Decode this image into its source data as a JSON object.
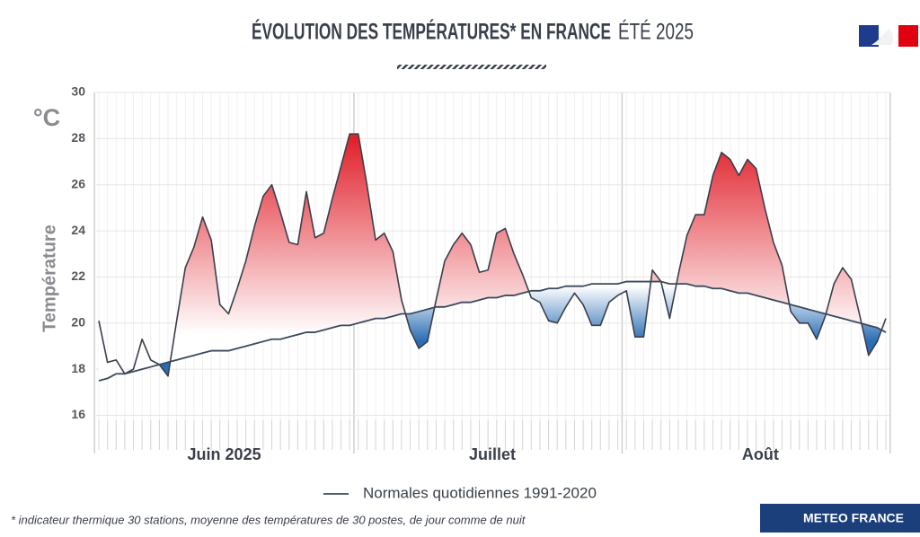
{
  "chart_data": {
    "type": "line",
    "title": "ÉVOLUTION DES TEMPÉRATURES* EN FRANCE",
    "title_suffix": "ÉTÉ 2025",
    "unit": "°C",
    "y_label": "Température",
    "footnote": "* indicateur thermique 30 stations, moyenne des températures de 30 postes, de jour comme de nuit",
    "brand": "METEO FRANCE",
    "categories": [
      null,
      null,
      null,
      null,
      null,
      null,
      null,
      null,
      null,
      null,
      null,
      null,
      null,
      null,
      "Juin 2025",
      null,
      null,
      null,
      null,
      null,
      null,
      null,
      null,
      null,
      null,
      null,
      null,
      null,
      null,
      null,
      null,
      null,
      null,
      null,
      null,
      null,
      null,
      null,
      null,
      null,
      null,
      null,
      null,
      null,
      null,
      "Juillet",
      null,
      null,
      null,
      null,
      null,
      null,
      null,
      null,
      null,
      null,
      null,
      null,
      null,
      null,
      null,
      null,
      null,
      null,
      null,
      null,
      null,
      null,
      null,
      null,
      null,
      null,
      null,
      null,
      null,
      null,
      "Août",
      null,
      null,
      null,
      null,
      null,
      null,
      null,
      null,
      null,
      null,
      null,
      null,
      null,
      null,
      null
    ],
    "series": [
      {
        "color": "#3a3f4b",
        "values": [
          20.1,
          18.3,
          18.4,
          17.8,
          18.0,
          19.3,
          18.4,
          18.2,
          17.7,
          20.1,
          22.4,
          23.3,
          24.6,
          23.6,
          20.8,
          20.4,
          21.5,
          22.7,
          24.2,
          25.5,
          26.0,
          24.8,
          23.5,
          23.4,
          25.7,
          23.7,
          23.9,
          25.4,
          26.8,
          28.2,
          28.2,
          26.0,
          23.6,
          23.9,
          23.1,
          21.0,
          19.7,
          18.9,
          19.2,
          21.0,
          22.7,
          23.4,
          23.9,
          23.4,
          22.2,
          22.3,
          23.9,
          24.1,
          23.0,
          22.1,
          21.1,
          20.9,
          20.1,
          20.0,
          20.7,
          21.3,
          20.8,
          19.9,
          19.9,
          20.9,
          21.2,
          21.4,
          19.4,
          19.4,
          22.3,
          21.8,
          20.2,
          22.1,
          23.8,
          24.7,
          24.7,
          26.4,
          27.4,
          27.1,
          26.4,
          27.1,
          26.7,
          25.0,
          23.5,
          22.5,
          20.5,
          20.0,
          20.0,
          19.3,
          20.3,
          21.7,
          22.4,
          21.9,
          20.3,
          18.6,
          19.2,
          20.2
        ]
      },
      {
        "name": "Normales quotidiennes 1991-2020",
        "color": "#3a4a5e",
        "values": [
          17.5,
          17.6,
          17.8,
          17.8,
          17.9,
          18.0,
          18.1,
          18.2,
          18.3,
          18.4,
          18.5,
          18.6,
          18.7,
          18.8,
          18.8,
          18.8,
          18.9,
          19.0,
          19.1,
          19.2,
          19.3,
          19.3,
          19.4,
          19.5,
          19.6,
          19.6,
          19.7,
          19.8,
          19.9,
          19.9,
          20.0,
          20.1,
          20.2,
          20.2,
          20.3,
          20.4,
          20.4,
          20.5,
          20.6,
          20.7,
          20.7,
          20.8,
          20.9,
          20.9,
          21.0,
          21.1,
          21.1,
          21.2,
          21.2,
          21.3,
          21.4,
          21.4,
          21.5,
          21.5,
          21.6,
          21.6,
          21.6,
          21.7,
          21.7,
          21.7,
          21.7,
          21.8,
          21.8,
          21.8,
          21.8,
          21.8,
          21.7,
          21.7,
          21.7,
          21.6,
          21.6,
          21.5,
          21.5,
          21.4,
          21.3,
          21.3,
          21.2,
          21.1,
          21.0,
          20.9,
          20.8,
          20.7,
          20.6,
          20.5,
          20.4,
          20.3,
          20.2,
          20.1,
          20.0,
          19.9,
          19.8,
          19.6
        ]
      }
    ],
    "above_color": "#e0212b",
    "below_color": "#2a6db5",
    "ylim": [
      14.5,
      30
    ],
    "yticks": [
      16,
      18,
      20,
      22,
      24,
      26,
      28,
      30
    ],
    "grid": true
  }
}
